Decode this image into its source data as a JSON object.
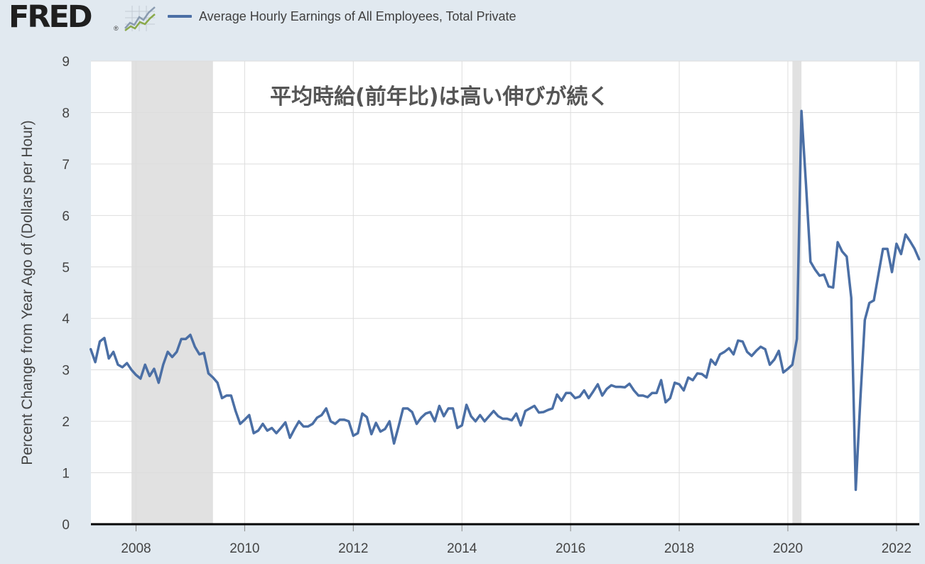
{
  "header": {
    "logo_text": "FRED",
    "logo_reg": "®",
    "logo_icon": "line-graph-icon",
    "series_legend": "Average Hourly Earnings of All Employees, Total Private"
  },
  "colors": {
    "background": "#e1e9f0",
    "plot_background": "#ffffff",
    "series": "#4b6fa5",
    "recession": "#e1e1e1",
    "gridline": "#dddddd"
  },
  "chart_data": {
    "type": "line",
    "title": "",
    "annotation": "平均時給(前年比)は高い伸びが続く",
    "xlabel": "",
    "ylabel": "Percent Change from Year Ago of (Dollars per Hour)",
    "xlim": [
      2007.17,
      2022.42
    ],
    "ylim": [
      0,
      9
    ],
    "xticks": [
      2008,
      2010,
      2012,
      2014,
      2016,
      2018,
      2020,
      2022
    ],
    "xtick_labels": [
      "2008",
      "2010",
      "2012",
      "2014",
      "2016",
      "2018",
      "2020",
      "2022"
    ],
    "yticks": [
      0,
      1,
      2,
      3,
      4,
      5,
      6,
      7,
      8,
      9
    ],
    "ytick_labels": [
      "0",
      "1",
      "2",
      "3",
      "4",
      "5",
      "6",
      "7",
      "8",
      "9"
    ],
    "grid": true,
    "recessions": [
      {
        "start": "2007-12",
        "end": "2009-06"
      },
      {
        "start": "2020-02",
        "end": "2020-04"
      }
    ],
    "series": [
      {
        "name": "Average Hourly Earnings of All Employees, Total Private",
        "start": "2007-03",
        "frequency": "monthly",
        "values": [
          3.4,
          3.15,
          3.55,
          3.62,
          3.22,
          3.35,
          3.1,
          3.05,
          3.13,
          3.0,
          2.9,
          2.83,
          3.1,
          2.88,
          3.02,
          2.75,
          3.1,
          3.35,
          3.25,
          3.35,
          3.6,
          3.6,
          3.68,
          3.45,
          3.3,
          3.33,
          2.93,
          2.85,
          2.75,
          2.45,
          2.5,
          2.5,
          2.2,
          1.95,
          2.03,
          2.12,
          1.77,
          1.82,
          1.95,
          1.82,
          1.87,
          1.77,
          1.87,
          1.98,
          1.68,
          1.85,
          2.0,
          1.9,
          1.9,
          1.95,
          2.07,
          2.12,
          2.25,
          2.0,
          1.95,
          2.03,
          2.03,
          2.0,
          1.72,
          1.77,
          2.15,
          2.08,
          1.75,
          1.97,
          1.8,
          1.85,
          2.0,
          1.57,
          1.9,
          2.25,
          2.25,
          2.18,
          1.95,
          2.07,
          2.15,
          2.18,
          2.0,
          2.3,
          2.1,
          2.25,
          2.25,
          1.87,
          1.92,
          2.32,
          2.1,
          2.0,
          2.12,
          2.0,
          2.1,
          2.2,
          2.1,
          2.05,
          2.05,
          2.02,
          2.15,
          1.92,
          2.2,
          2.25,
          2.3,
          2.17,
          2.18,
          2.22,
          2.25,
          2.52,
          2.4,
          2.55,
          2.55,
          2.45,
          2.48,
          2.6,
          2.45,
          2.58,
          2.72,
          2.5,
          2.63,
          2.7,
          2.67,
          2.67,
          2.66,
          2.73,
          2.6,
          2.5,
          2.5,
          2.47,
          2.55,
          2.55,
          2.8,
          2.37,
          2.45,
          2.75,
          2.72,
          2.6,
          2.85,
          2.8,
          2.93,
          2.92,
          2.85,
          3.2,
          3.1,
          3.3,
          3.35,
          3.42,
          3.3,
          3.57,
          3.55,
          3.35,
          3.27,
          3.37,
          3.45,
          3.4,
          3.1,
          3.2,
          3.37,
          2.95,
          3.02,
          3.1,
          3.6,
          8.03,
          6.6,
          5.1,
          4.95,
          4.83,
          4.85,
          4.62,
          4.6,
          5.48,
          5.3,
          5.2,
          4.4,
          0.67,
          2.4,
          3.97,
          4.3,
          4.35,
          4.85,
          5.35,
          5.35,
          4.9,
          5.45,
          5.25,
          5.63,
          5.5,
          5.35,
          5.15
        ]
      }
    ]
  }
}
